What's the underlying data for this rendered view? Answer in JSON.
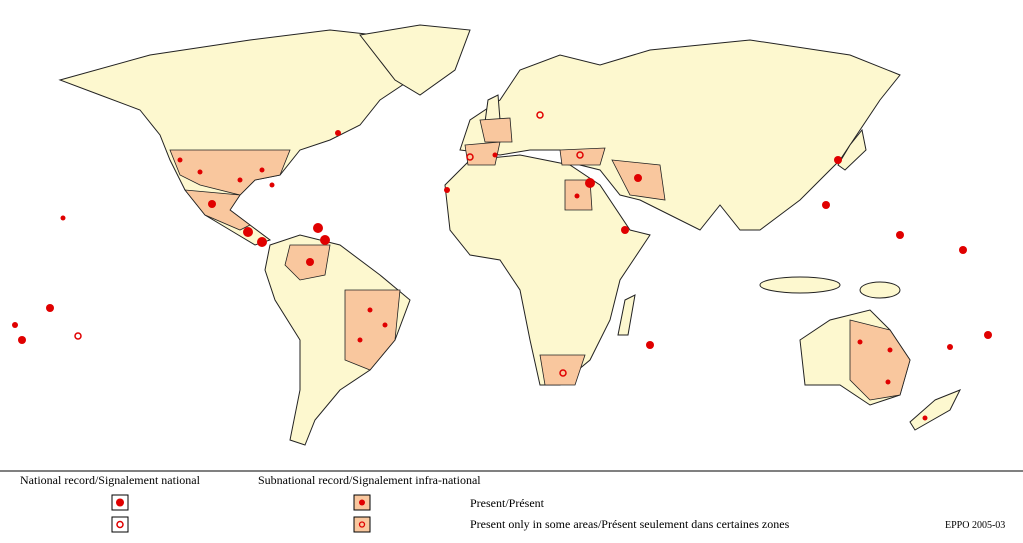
{
  "legend": {
    "national_heading": "National record/Signalement national",
    "subnational_heading": "Subnational record/Signalement infra-national",
    "rows": [
      {
        "label": "Present/Présent"
      },
      {
        "label": "Present only in some areas/Présent seulement dans certaines zones"
      }
    ]
  },
  "footer": {
    "credit": "EPPO 2005-03"
  }
}
